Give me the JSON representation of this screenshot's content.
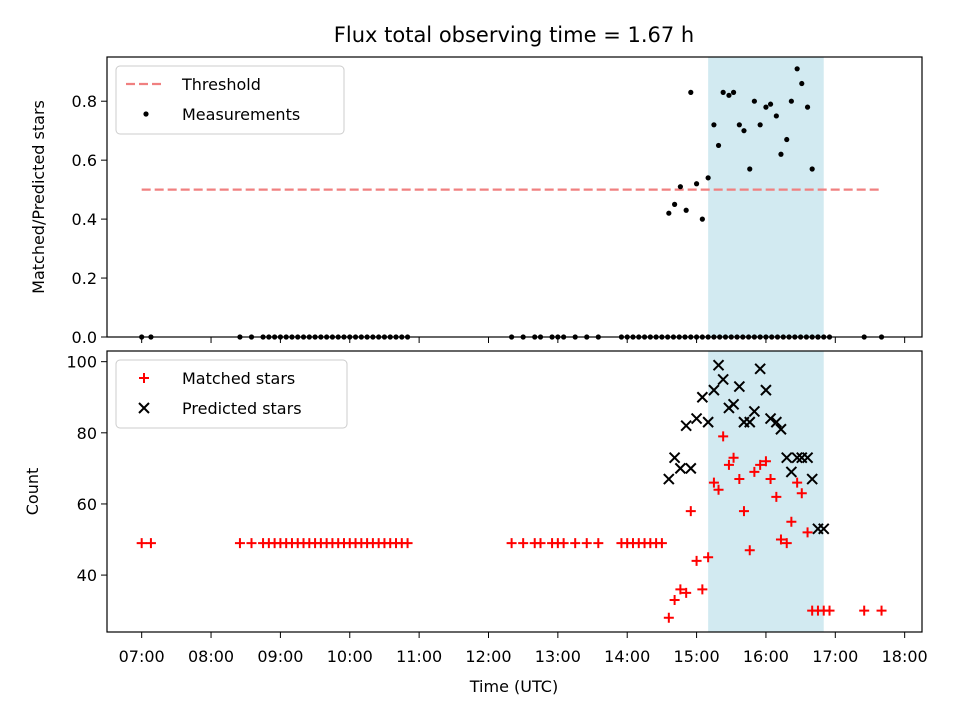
{
  "title": "Flux total observing time = 1.67 h",
  "xlabel": "Time (UTC)",
  "x_ticks": [
    "07:00",
    "08:00",
    "09:00",
    "10:00",
    "11:00",
    "12:00",
    "13:00",
    "14:00",
    "15:00",
    "16:00",
    "17:00",
    "18:00"
  ],
  "colors": {
    "threshold": "#f08080",
    "measurement": "#000000",
    "matched": "#ff0000",
    "predicted": "#000000",
    "window": "#add8e6"
  },
  "chart_data": [
    {
      "type": "scatter",
      "panel": "top",
      "ylabel": "Matched/Predicted stars",
      "ylim": [
        0,
        0.95
      ],
      "y_ticks": [
        "0.0",
        "0.2",
        "0.4",
        "0.6",
        "0.8"
      ],
      "legend": {
        "placement": "top-left",
        "entries": [
          "Threshold",
          "Measurements"
        ]
      },
      "highlight_window": [
        "15:10",
        "16:50"
      ],
      "threshold": {
        "name": "Threshold",
        "value": 0.5,
        "x_range": [
          "07:00",
          "17:40"
        ]
      },
      "series": [
        {
          "name": "Measurements",
          "x": [
            "07:00",
            "07:08",
            "08:25",
            "08:35",
            "08:45",
            "08:50",
            "08:55",
            "09:00",
            "09:05",
            "09:10",
            "09:15",
            "09:20",
            "09:25",
            "09:30",
            "09:35",
            "09:40",
            "09:45",
            "09:50",
            "09:55",
            "10:00",
            "10:05",
            "10:10",
            "10:15",
            "10:20",
            "10:25",
            "10:30",
            "10:35",
            "10:40",
            "10:45",
            "10:50",
            "12:20",
            "12:30",
            "12:40",
            "12:45",
            "12:55",
            "13:00",
            "13:05",
            "13:15",
            "13:25",
            "13:35",
            "13:55",
            "14:00",
            "14:05",
            "14:10",
            "14:15",
            "14:20",
            "14:25",
            "14:30",
            "14:35",
            "14:40",
            "14:45",
            "14:50",
            "14:55",
            "15:00",
            "15:05",
            "15:10",
            "15:15",
            "15:20",
            "15:25",
            "15:30",
            "15:35",
            "15:40",
            "15:45",
            "15:50",
            "15:55",
            "16:00",
            "16:05",
            "16:10",
            "16:15",
            "16:20",
            "16:25",
            "16:30",
            "16:35",
            "16:40",
            "16:45",
            "16:50",
            "16:55",
            "17:25",
            "17:40"
          ],
          "y": [
            0,
            0,
            0,
            0,
            0,
            0,
            0,
            0,
            0,
            0,
            0,
            0,
            0,
            0,
            0,
            0,
            0,
            0,
            0,
            0,
            0,
            0,
            0,
            0,
            0,
            0,
            0,
            0,
            0,
            0,
            0,
            0,
            0,
            0,
            0,
            0,
            0,
            0,
            0,
            0,
            0,
            0,
            0,
            0,
            0,
            0,
            0,
            0,
            0,
            0,
            0,
            0,
            0,
            0,
            0,
            0,
            0,
            0,
            0,
            0,
            0,
            0,
            0,
            0,
            0,
            0,
            0,
            0,
            0,
            0,
            0,
            0,
            0,
            0,
            0,
            0,
            0,
            0,
            0
          ],
          "x_high": [
            "14:36",
            "14:41",
            "14:46",
            "14:51",
            "14:55",
            "15:00",
            "15:05",
            "15:10",
            "15:15",
            "15:19",
            "15:23",
            "15:28",
            "15:32",
            "15:37",
            "15:41",
            "15:46",
            "15:50",
            "15:55",
            "16:00",
            "16:04",
            "16:09",
            "16:13",
            "16:18",
            "16:22",
            "16:27",
            "16:31",
            "16:36",
            "16:40",
            "16:45"
          ],
          "y_high": [
            0.42,
            0.45,
            0.51,
            0.43,
            0.83,
            0.52,
            0.4,
            0.54,
            0.72,
            0.65,
            0.83,
            0.82,
            0.83,
            0.72,
            0.7,
            0.57,
            0.8,
            0.72,
            0.78,
            0.79,
            0.75,
            0.62,
            0.67,
            0.8,
            0.91,
            0.86,
            0.78,
            0.57,
            0.0
          ]
        }
      ]
    },
    {
      "type": "scatter",
      "panel": "bottom",
      "ylabel": "Count",
      "ylim": [
        24,
        103
      ],
      "y_ticks": [
        "40",
        "60",
        "80",
        "100"
      ],
      "legend": {
        "placement": "top-left",
        "entries": [
          "Matched stars",
          "Predicted stars"
        ]
      },
      "highlight_window": [
        "15:10",
        "16:50"
      ],
      "series": [
        {
          "name": "Matched stars",
          "marker": "plus",
          "x": [
            "07:00",
            "07:08",
            "08:25",
            "08:35",
            "08:45",
            "08:50",
            "08:55",
            "09:00",
            "09:05",
            "09:10",
            "09:15",
            "09:20",
            "09:25",
            "09:30",
            "09:35",
            "09:40",
            "09:45",
            "09:50",
            "09:55",
            "10:00",
            "10:05",
            "10:10",
            "10:15",
            "10:20",
            "10:25",
            "10:30",
            "10:35",
            "10:40",
            "10:45",
            "10:50",
            "12:20",
            "12:30",
            "12:40",
            "12:45",
            "12:55",
            "13:00",
            "13:05",
            "13:15",
            "13:25",
            "13:35",
            "13:55",
            "14:00",
            "14:05",
            "14:10",
            "14:15",
            "14:20",
            "14:25",
            "14:30",
            "14:36",
            "14:41",
            "14:46",
            "14:51",
            "14:55",
            "15:00",
            "15:05",
            "15:10",
            "15:15",
            "15:19",
            "15:23",
            "15:28",
            "15:32",
            "15:37",
            "15:41",
            "15:46",
            "15:50",
            "15:55",
            "16:00",
            "16:04",
            "16:09",
            "16:13",
            "16:18",
            "16:22",
            "16:27",
            "16:31",
            "16:36",
            "16:40",
            "16:45",
            "16:50",
            "16:55",
            "17:25",
            "17:40"
          ],
          "y": [
            49,
            49,
            49,
            49,
            49,
            49,
            49,
            49,
            49,
            49,
            49,
            49,
            49,
            49,
            49,
            49,
            49,
            49,
            49,
            49,
            49,
            49,
            49,
            49,
            49,
            49,
            49,
            49,
            49,
            49,
            49,
            49,
            49,
            49,
            49,
            49,
            49,
            49,
            49,
            49,
            49,
            49,
            49,
            49,
            49,
            49,
            49,
            49,
            28,
            33,
            36,
            35,
            58,
            44,
            36,
            45,
            66,
            64,
            79,
            71,
            73,
            67,
            58,
            47,
            69,
            71,
            72,
            67,
            62,
            50,
            49,
            55,
            66,
            63,
            52,
            30,
            30,
            30,
            30,
            30,
            30
          ]
        },
        {
          "name": "Predicted stars",
          "marker": "x",
          "x": [
            "14:36",
            "14:41",
            "14:46",
            "14:51",
            "14:55",
            "15:00",
            "15:05",
            "15:10",
            "15:15",
            "15:19",
            "15:23",
            "15:28",
            "15:32",
            "15:37",
            "15:41",
            "15:46",
            "15:50",
            "15:55",
            "16:00",
            "16:04",
            "16:09",
            "16:13",
            "16:18",
            "16:22",
            "16:27",
            "16:31",
            "16:36",
            "16:40",
            "16:45",
            "16:50"
          ],
          "y": [
            67,
            73,
            70,
            82,
            70,
            84,
            90,
            83,
            92,
            99,
            95,
            87,
            88,
            93,
            83,
            83,
            86,
            98,
            92,
            84,
            83,
            81,
            73,
            69,
            73,
            73,
            73,
            67,
            53,
            53
          ]
        }
      ]
    }
  ]
}
